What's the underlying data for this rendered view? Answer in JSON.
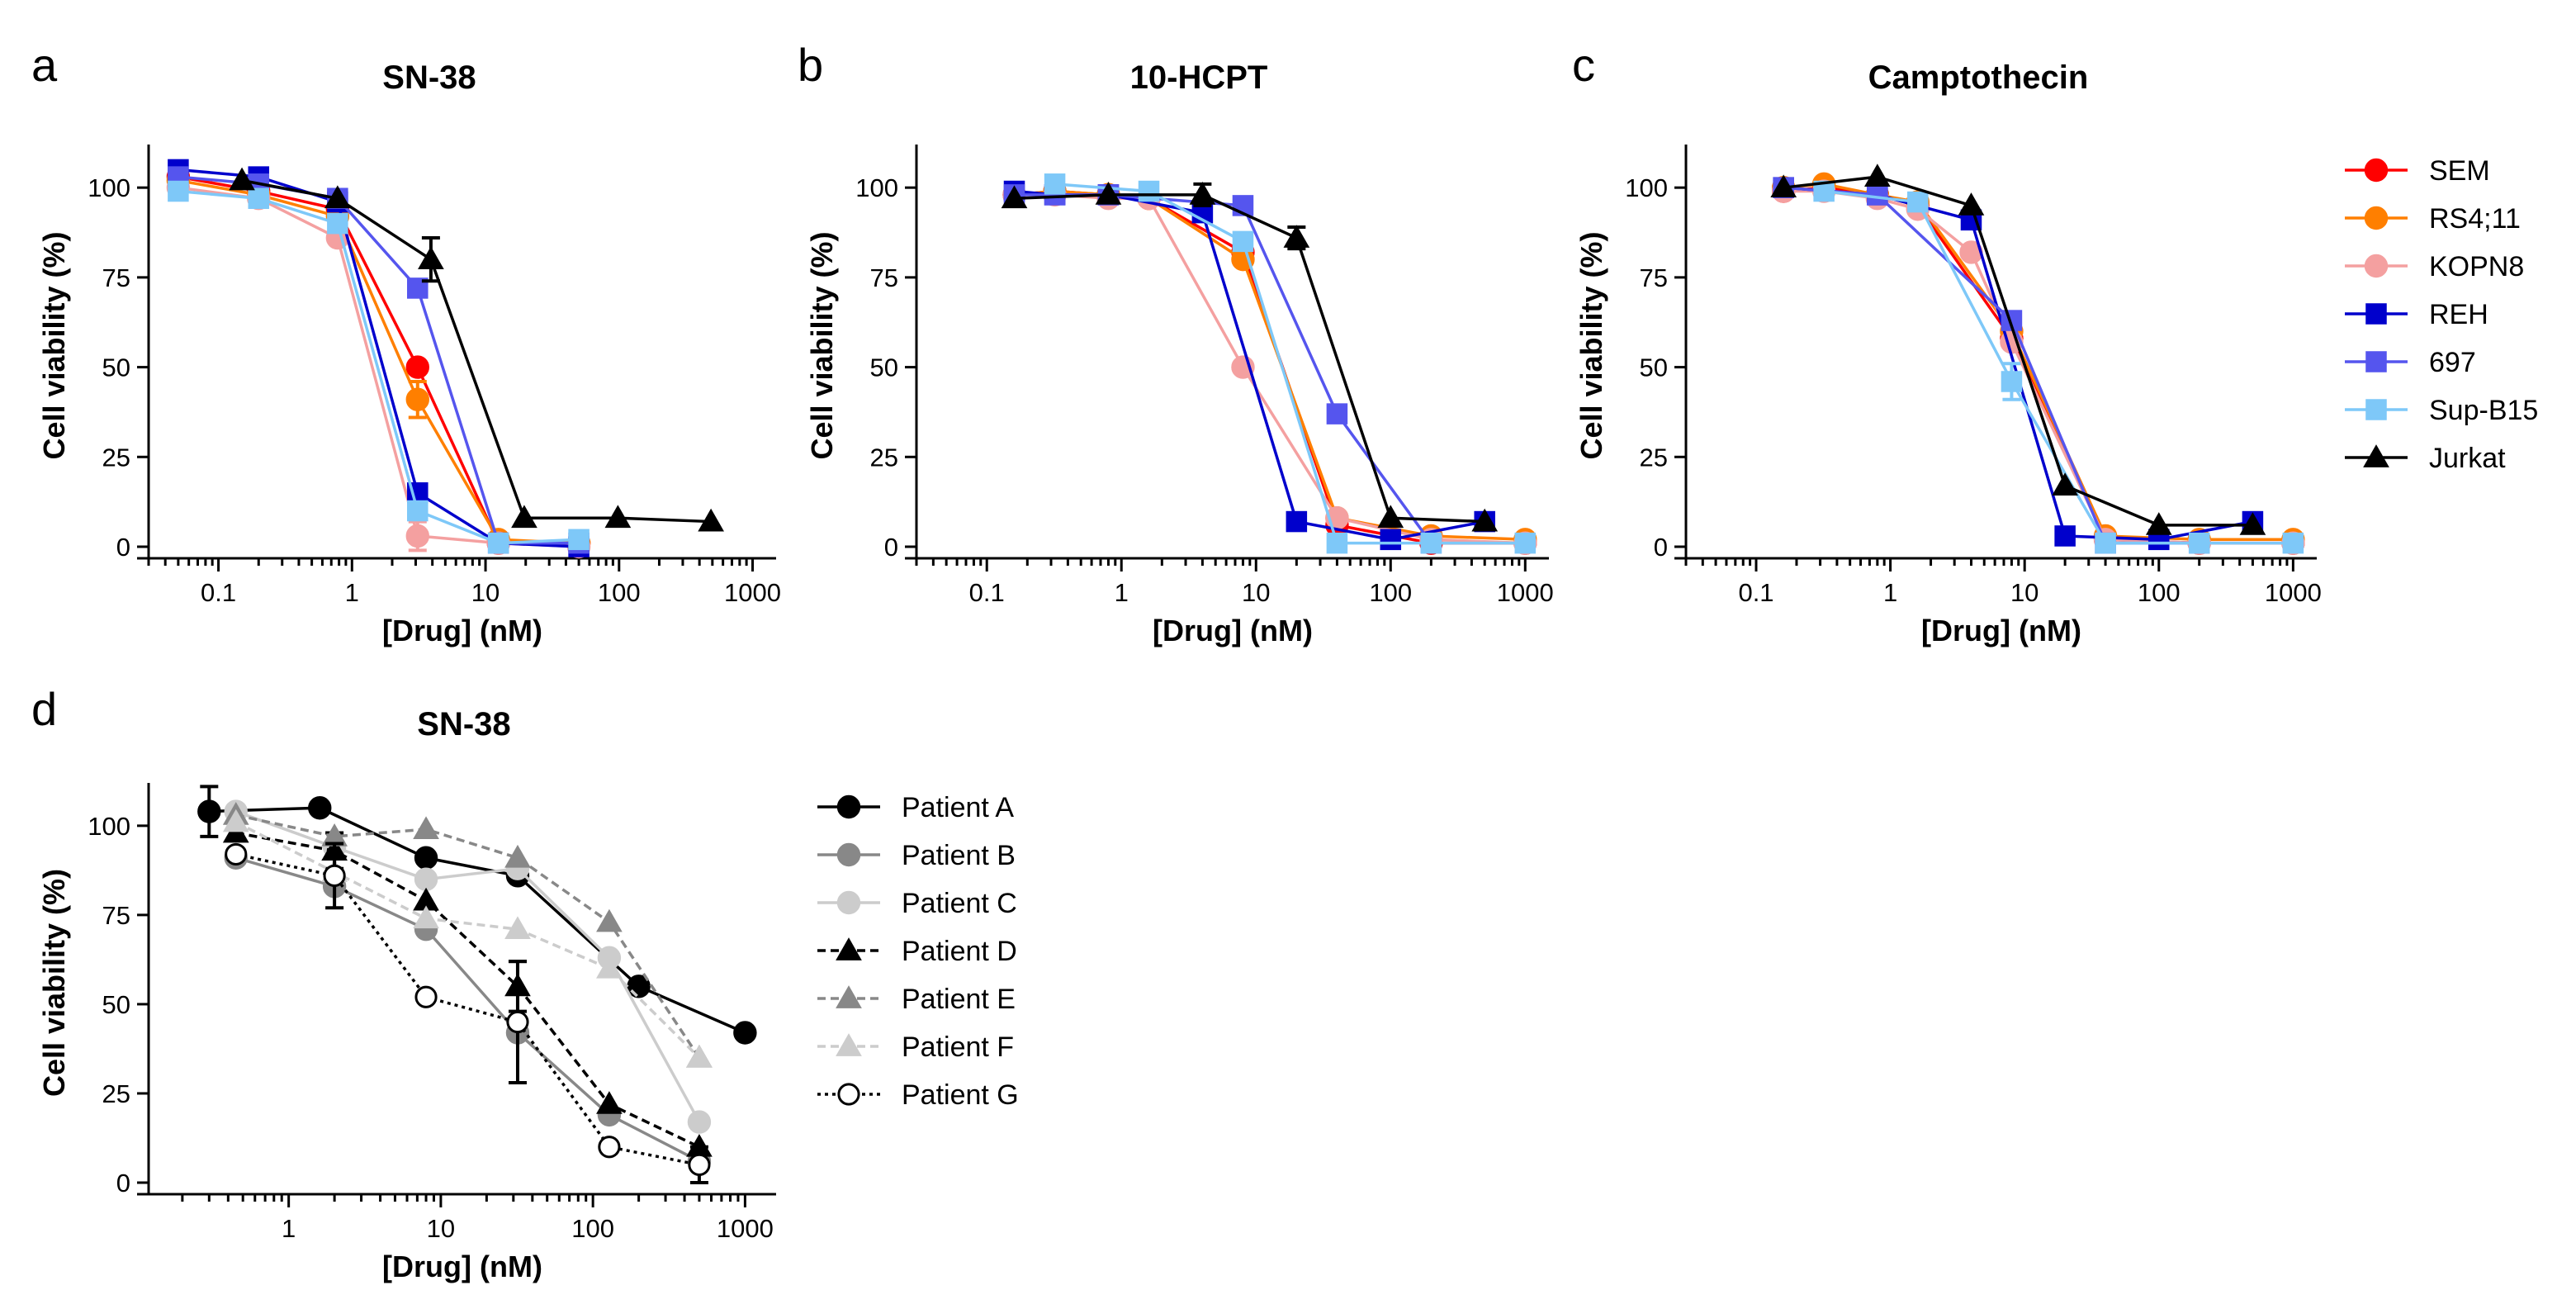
{
  "chart_data": [
    {
      "panel": "a",
      "type": "line",
      "title": "SN-38",
      "xlabel": "[Drug] (nM)",
      "ylabel": "Cell viability (%)",
      "xscale": "log",
      "xlim": [
        0.03,
        1500
      ],
      "ylim": [
        0,
        112
      ],
      "xticks": [
        0.1,
        1,
        10,
        100,
        1000
      ],
      "xtick_labels": [
        "0.1",
        "1",
        "10",
        "100",
        "1000"
      ],
      "yticks": [
        0,
        25,
        50,
        75,
        100
      ],
      "ytick_labels": [
        "0",
        "25",
        "50",
        "75",
        "100"
      ],
      "series": [
        {
          "name": "SEM",
          "color": "#ff0000",
          "marker": "circle",
          "dash": "",
          "x": [
            0.05,
            0.2,
            0.78,
            3.1,
            12.5,
            50
          ],
          "y": [
            103,
            99,
            94,
            50,
            1,
            1
          ]
        },
        {
          "name": "RS4;11",
          "color": "#ff7f00",
          "marker": "circle",
          "dash": "",
          "x": [
            0.05,
            0.2,
            0.78,
            3.1,
            12.5,
            50
          ],
          "y": [
            102,
            98,
            92,
            41,
            2,
            1
          ],
          "err": [
            0,
            0,
            2,
            5,
            0,
            0
          ]
        },
        {
          "name": "KOPN8",
          "color": "#f4a0a0",
          "marker": "circle",
          "dash": "",
          "x": [
            0.05,
            0.2,
            0.78,
            3.1,
            12.5,
            50
          ],
          "y": [
            100,
            97,
            86,
            3,
            1,
            0
          ],
          "err": [
            0,
            0,
            0,
            4,
            0,
            0
          ]
        },
        {
          "name": "REH",
          "color": "#0000cc",
          "marker": "square",
          "dash": "",
          "x": [
            0.05,
            0.2,
            0.78,
            3.1,
            12.5,
            50
          ],
          "y": [
            105,
            103,
            96,
            15,
            1,
            0
          ]
        },
        {
          "name": "697",
          "color": "#5555ee",
          "marker": "square",
          "dash": "",
          "x": [
            0.05,
            0.2,
            0.78,
            3.1,
            12.5,
            50
          ],
          "y": [
            103,
            101,
            97,
            72,
            1,
            1
          ]
        },
        {
          "name": "Sup-B15",
          "color": "#7ec8f8",
          "marker": "square",
          "dash": "",
          "x": [
            0.05,
            0.2,
            0.78,
            3.1,
            12.5,
            50
          ],
          "y": [
            99,
            97,
            90,
            10,
            1,
            2
          ]
        },
        {
          "name": "Jurkat",
          "color": "#000000",
          "marker": "triangle",
          "dash": "",
          "x": [
            0.15,
            0.78,
            3.9,
            19.5,
            98,
            488
          ],
          "y": [
            102,
            97,
            80,
            8,
            8,
            7
          ],
          "err": [
            0,
            0,
            6,
            0,
            0,
            0
          ]
        }
      ]
    },
    {
      "panel": "b",
      "type": "line",
      "title": "10-HCPT",
      "xlabel": "[Drug] (nM)",
      "ylabel": "Cell viability (%)",
      "xscale": "log",
      "xlim": [
        0.03,
        1500
      ],
      "ylim": [
        0,
        112
      ],
      "xticks": [
        0.1,
        1,
        10,
        100,
        1000
      ],
      "xtick_labels": [
        "0.1",
        "1",
        "10",
        "100",
        "1000"
      ],
      "yticks": [
        0,
        25,
        50,
        75,
        100
      ],
      "ytick_labels": [
        "0",
        "25",
        "50",
        "75",
        "100"
      ],
      "series": [
        {
          "name": "SEM",
          "color": "#ff0000",
          "marker": "circle",
          "dash": "",
          "x": [
            0.16,
            0.32,
            0.8,
            1.6,
            8,
            40,
            200,
            1000
          ],
          "y": [
            98,
            99,
            98,
            97,
            82,
            6,
            1,
            1
          ]
        },
        {
          "name": "RS4;11",
          "color": "#ff7f00",
          "marker": "circle",
          "dash": "",
          "x": [
            0.16,
            0.32,
            0.8,
            1.6,
            8,
            40,
            200,
            1000
          ],
          "y": [
            98,
            99,
            98,
            97,
            80,
            8,
            3,
            2
          ]
        },
        {
          "name": "KOPN8",
          "color": "#f4a0a0",
          "marker": "circle",
          "dash": "",
          "x": [
            0.16,
            0.32,
            0.8,
            1.6,
            8,
            40,
            200,
            1000
          ],
          "y": [
            98,
            98,
            97,
            97,
            50,
            8,
            2,
            1
          ]
        },
        {
          "name": "REH",
          "color": "#0000cc",
          "marker": "square",
          "dash": "",
          "x": [
            0.16,
            0.32,
            0.8,
            4,
            20,
            100,
            500
          ],
          "y": [
            99,
            98,
            98,
            93,
            7,
            2,
            7
          ]
        },
        {
          "name": "697",
          "color": "#5555ee",
          "marker": "square",
          "dash": "",
          "x": [
            0.16,
            0.32,
            0.8,
            8,
            40,
            200
          ],
          "y": [
            98,
            98,
            98,
            95,
            37,
            1
          ]
        },
        {
          "name": "Sup-B15",
          "color": "#7ec8f8",
          "marker": "square",
          "dash": "",
          "x": [
            0.32,
            1.6,
            8,
            40,
            200,
            1000
          ],
          "y": [
            101,
            99,
            85,
            1,
            1,
            1
          ]
        },
        {
          "name": "Jurkat",
          "color": "#000000",
          "marker": "triangle",
          "dash": "",
          "x": [
            0.16,
            0.8,
            4,
            20,
            100,
            500
          ],
          "y": [
            97,
            98,
            98,
            86,
            8,
            7
          ],
          "err": [
            0,
            0,
            3,
            3,
            0,
            0
          ]
        }
      ]
    },
    {
      "panel": "c",
      "type": "line",
      "title": "Camptothecin",
      "xlabel": "[Drug] (nM)",
      "ylabel": "Cell viability (%)",
      "xscale": "log",
      "xlim": [
        0.03,
        1500
      ],
      "ylim": [
        0,
        112
      ],
      "xticks": [
        0.1,
        1,
        10,
        100,
        1000
      ],
      "xtick_labels": [
        "0.1",
        "1",
        "10",
        "100",
        "1000"
      ],
      "yticks": [
        0,
        25,
        50,
        75,
        100
      ],
      "ytick_labels": [
        "0",
        "25",
        "50",
        "75",
        "100"
      ],
      "series": [
        {
          "name": "SEM",
          "color": "#ff0000",
          "marker": "circle",
          "dash": "",
          "x": [
            0.16,
            0.32,
            0.8,
            1.6,
            8,
            40,
            200,
            1000
          ],
          "y": [
            99,
            100,
            98,
            95,
            58,
            2,
            1,
            1
          ]
        },
        {
          "name": "RS4;11",
          "color": "#ff7f00",
          "marker": "circle",
          "dash": "",
          "x": [
            0.16,
            0.32,
            0.8,
            1.6,
            8,
            40,
            200,
            1000
          ],
          "y": [
            100,
            101,
            98,
            96,
            60,
            3,
            2,
            2
          ]
        },
        {
          "name": "KOPN8",
          "color": "#f4a0a0",
          "marker": "circle",
          "dash": "",
          "x": [
            0.16,
            0.32,
            0.8,
            1.6,
            4,
            8,
            40,
            200,
            1000
          ],
          "y": [
            99,
            99,
            97,
            94,
            82,
            57,
            2,
            1,
            1
          ]
        },
        {
          "name": "REH",
          "color": "#0000cc",
          "marker": "square",
          "dash": "",
          "x": [
            0.16,
            0.8,
            4,
            20,
            100,
            500
          ],
          "y": [
            100,
            98,
            91,
            3,
            2,
            7
          ]
        },
        {
          "name": "697",
          "color": "#5555ee",
          "marker": "square",
          "dash": "",
          "x": [
            0.16,
            0.8,
            8,
            40,
            200
          ],
          "y": [
            100,
            98,
            63,
            1,
            1
          ]
        },
        {
          "name": "Sup-B15",
          "color": "#7ec8f8",
          "marker": "square",
          "dash": "",
          "x": [
            0.32,
            1.6,
            8,
            40,
            200,
            1000
          ],
          "y": [
            99,
            96,
            46,
            1,
            1,
            1
          ],
          "err": [
            0,
            0,
            5,
            0,
            0,
            0
          ]
        },
        {
          "name": "Jurkat",
          "color": "#000000",
          "marker": "triangle",
          "dash": "",
          "x": [
            0.16,
            0.8,
            4,
            20,
            100,
            500
          ],
          "y": [
            100,
            103,
            95,
            17,
            6,
            6
          ]
        }
      ],
      "legend": {
        "placement": "right",
        "entries": [
          "SEM",
          "RS4;11",
          "KOPN8",
          "REH",
          "697",
          "Sup-B15",
          "Jurkat"
        ]
      }
    },
    {
      "panel": "d",
      "type": "line",
      "title": "SN-38",
      "xlabel": "[Drug] (nM)",
      "ylabel": "Cell viability (%)",
      "xscale": "log",
      "xlim": [
        0.12,
        1600
      ],
      "ylim": [
        0,
        112
      ],
      "xticks": [
        1,
        10,
        100,
        1000
      ],
      "xtick_labels": [
        "1",
        "10",
        "100",
        "1000"
      ],
      "yticks": [
        0,
        25,
        50,
        75,
        100
      ],
      "ytick_labels": [
        "0",
        "25",
        "50",
        "75",
        "100"
      ],
      "series": [
        {
          "name": "Patient A",
          "color": "#000000",
          "marker": "circle",
          "dash": "",
          "x": [
            0.3,
            1.6,
            8,
            32,
            200,
            1000
          ],
          "y": [
            104,
            105,
            91,
            86,
            55,
            42
          ],
          "err": [
            7,
            0,
            0,
            0,
            0,
            0
          ]
        },
        {
          "name": "Patient B",
          "color": "#888888",
          "marker": "circle",
          "dash": "",
          "x": [
            0.45,
            2,
            8,
            32,
            128,
            500
          ],
          "y": [
            91,
            83,
            71,
            42,
            19,
            6
          ]
        },
        {
          "name": "Patient C",
          "color": "#cccccc",
          "marker": "circle",
          "dash": "",
          "x": [
            0.45,
            2,
            8,
            32,
            128,
            500
          ],
          "y": [
            104,
            94,
            85,
            88,
            63,
            17
          ]
        },
        {
          "name": "Patient D",
          "color": "#000000",
          "marker": "triangle",
          "dash": "10,6",
          "x": [
            0.45,
            2,
            8,
            32,
            128,
            500
          ],
          "y": [
            98,
            93,
            79,
            55,
            22,
            10
          ],
          "err": [
            0,
            5,
            0,
            7,
            0,
            0
          ]
        },
        {
          "name": "Patient E",
          "color": "#888888",
          "marker": "triangle",
          "dash": "10,6",
          "x": [
            0.45,
            2,
            8,
            32,
            128,
            500
          ],
          "y": [
            103,
            97,
            99,
            91,
            73,
            35
          ]
        },
        {
          "name": "Patient F",
          "color": "#cccccc",
          "marker": "triangle",
          "dash": "10,6",
          "x": [
            0.45,
            2,
            8,
            32,
            128,
            500
          ],
          "y": [
            101,
            87,
            74,
            71,
            60,
            35
          ]
        },
        {
          "name": "Patient G",
          "color": "#000000",
          "marker": "open-circle",
          "dash": "4,5",
          "x": [
            0.45,
            2,
            8,
            32,
            128,
            500
          ],
          "y": [
            92,
            86,
            52,
            45,
            10,
            5
          ],
          "err": [
            0,
            9,
            0,
            17,
            0,
            5
          ]
        }
      ],
      "legend": {
        "placement": "right",
        "entries": [
          "Patient A",
          "Patient B",
          "Patient C",
          "Patient D",
          "Patient E",
          "Patient F",
          "Patient G"
        ]
      }
    }
  ]
}
